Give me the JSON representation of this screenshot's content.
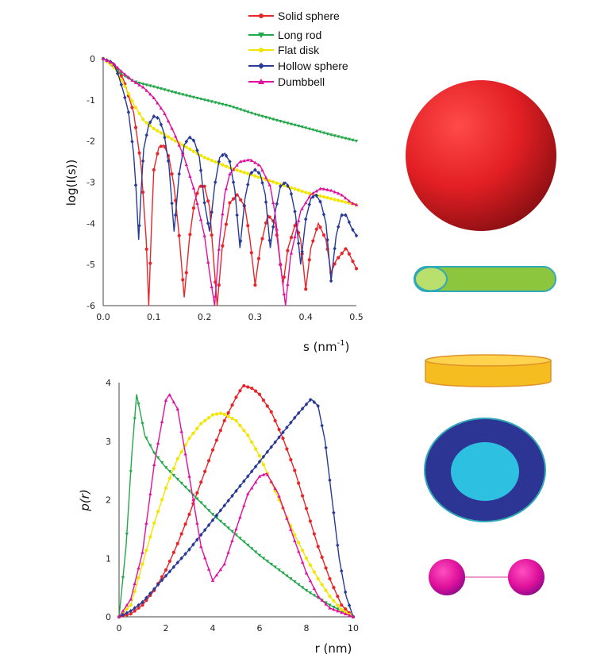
{
  "legend": {
    "items": [
      {
        "label": "Solid sphere",
        "color": "#e8262a",
        "marker": "circle"
      },
      {
        "label": "Long rod",
        "color": "#22a84a",
        "marker": "triangle-down"
      },
      {
        "label": "Flat disk",
        "color": "#f2e600",
        "marker": "circle"
      },
      {
        "label": "Hollow sphere",
        "color": "#283a96",
        "marker": "diamond"
      },
      {
        "label": "Dumbbell",
        "color": "#e0119c",
        "marker": "triangle-up"
      }
    ]
  },
  "chart_data": [
    {
      "type": "line",
      "ylabel": "log(I(s))",
      "xlabel": "s (nm",
      "xlabel_sup": "-1",
      "xlabel_close": ")",
      "xlim": [
        0,
        0.5
      ],
      "ylim": [
        -6,
        0
      ],
      "xticks": [
        "0.0",
        "0.1",
        "0.2",
        "0.3",
        "0.4",
        "0.5"
      ],
      "yticks": [
        "0",
        "-1",
        "-2",
        "-3",
        "-4",
        "-5",
        "-6"
      ],
      "grid": false,
      "legend_position": "top-center",
      "series": [
        {
          "name": "Solid sphere",
          "points": [
            [
              0,
              0
            ],
            [
              0.02,
              -0.12
            ],
            [
              0.04,
              -0.5
            ],
            [
              0.06,
              -1.3
            ],
            [
              0.075,
              -2.6
            ],
            [
              0.085,
              -4.4
            ],
            [
              0.09,
              -6
            ],
            [
              0.095,
              -4.2
            ],
            [
              0.1,
              -2.7
            ],
            [
              0.11,
              -2.15
            ],
            [
              0.12,
              -2.1
            ],
            [
              0.13,
              -2.4
            ],
            [
              0.14,
              -3.1
            ],
            [
              0.15,
              -4.3
            ],
            [
              0.16,
              -5.8
            ],
            [
              0.17,
              -4.4
            ],
            [
              0.18,
              -3.5
            ],
            [
              0.19,
              -3.1
            ],
            [
              0.2,
              -3.1
            ],
            [
              0.21,
              -3.6
            ],
            [
              0.22,
              -5.2
            ],
            [
              0.225,
              -6
            ],
            [
              0.235,
              -4.6
            ],
            [
              0.25,
              -3.5
            ],
            [
              0.265,
              -3.3
            ],
            [
              0.28,
              -3.6
            ],
            [
              0.29,
              -4.4
            ],
            [
              0.3,
              -5.5
            ],
            [
              0.31,
              -4.6
            ],
            [
              0.325,
              -3.8
            ],
            [
              0.34,
              -4
            ],
            [
              0.35,
              -5
            ],
            [
              0.355,
              -5.5
            ],
            [
              0.365,
              -4.6
            ],
            [
              0.38,
              -4
            ],
            [
              0.39,
              -4.4
            ],
            [
              0.4,
              -5.6
            ],
            [
              0.41,
              -4.6
            ],
            [
              0.425,
              -4
            ],
            [
              0.44,
              -4.4
            ],
            [
              0.45,
              -5.2
            ],
            [
              0.46,
              -4.9
            ],
            [
              0.48,
              -4.6
            ],
            [
              0.5,
              -5.1
            ]
          ]
        },
        {
          "name": "Long rod",
          "points": [
            [
              0,
              0
            ],
            [
              0.02,
              -0.2
            ],
            [
              0.04,
              -0.4
            ],
            [
              0.06,
              -0.55
            ],
            [
              0.08,
              -0.62
            ],
            [
              0.1,
              -0.68
            ],
            [
              0.15,
              -0.85
            ],
            [
              0.2,
              -1.0
            ],
            [
              0.25,
              -1.15
            ],
            [
              0.3,
              -1.35
            ],
            [
              0.35,
              -1.52
            ],
            [
              0.4,
              -1.68
            ],
            [
              0.45,
              -1.85
            ],
            [
              0.5,
              -2.0
            ]
          ]
        },
        {
          "name": "Flat disk",
          "points": [
            [
              0,
              0
            ],
            [
              0.02,
              -0.18
            ],
            [
              0.04,
              -0.6
            ],
            [
              0.06,
              -1.1
            ],
            [
              0.08,
              -1.5
            ],
            [
              0.1,
              -1.7
            ],
            [
              0.15,
              -2.05
            ],
            [
              0.2,
              -2.4
            ],
            [
              0.25,
              -2.65
            ],
            [
              0.3,
              -2.85
            ],
            [
              0.35,
              -3.05
            ],
            [
              0.4,
              -3.25
            ],
            [
              0.45,
              -3.4
            ],
            [
              0.5,
              -3.55
            ]
          ]
        },
        {
          "name": "Hollow sphere",
          "points": [
            [
              0,
              0
            ],
            [
              0.02,
              -0.1
            ],
            [
              0.03,
              -0.4
            ],
            [
              0.04,
              -0.8
            ],
            [
              0.05,
              -1.3
            ],
            [
              0.06,
              -2.3
            ],
            [
              0.065,
              -3.2
            ],
            [
              0.07,
              -4.4
            ],
            [
              0.075,
              -3.2
            ],
            [
              0.08,
              -2.2
            ],
            [
              0.09,
              -1.6
            ],
            [
              0.1,
              -1.4
            ],
            [
              0.11,
              -1.45
            ],
            [
              0.12,
              -1.8
            ],
            [
              0.13,
              -2.6
            ],
            [
              0.14,
              -4.2
            ],
            [
              0.15,
              -2.8
            ],
            [
              0.16,
              -2.1
            ],
            [
              0.17,
              -1.9
            ],
            [
              0.18,
              -2.0
            ],
            [
              0.19,
              -2.4
            ],
            [
              0.2,
              -3.5
            ],
            [
              0.21,
              -4.2
            ],
            [
              0.22,
              -3.1
            ],
            [
              0.23,
              -2.4
            ],
            [
              0.24,
              -2.3
            ],
            [
              0.25,
              -2.5
            ],
            [
              0.26,
              -3.2
            ],
            [
              0.27,
              -4.6
            ],
            [
              0.28,
              -3.4
            ],
            [
              0.29,
              -2.8
            ],
            [
              0.3,
              -2.7
            ],
            [
              0.31,
              -2.8
            ],
            [
              0.32,
              -3.3
            ],
            [
              0.33,
              -4.6
            ],
            [
              0.34,
              -3.7
            ],
            [
              0.35,
              -3.1
            ],
            [
              0.36,
              -3.0
            ],
            [
              0.37,
              -3.2
            ],
            [
              0.38,
              -3.8
            ],
            [
              0.39,
              -5.0
            ],
            [
              0.4,
              -3.9
            ],
            [
              0.41,
              -3.4
            ],
            [
              0.42,
              -3.3
            ],
            [
              0.43,
              -3.5
            ],
            [
              0.44,
              -4.0
            ],
            [
              0.45,
              -5.4
            ],
            [
              0.46,
              -4.3
            ],
            [
              0.47,
              -3.8
            ],
            [
              0.48,
              -3.8
            ],
            [
              0.49,
              -4.1
            ],
            [
              0.5,
              -4.3
            ]
          ]
        },
        {
          "name": "Dumbbell",
          "points": [
            [
              0,
              0
            ],
            [
              0.02,
              -0.12
            ],
            [
              0.04,
              -0.35
            ],
            [
              0.06,
              -0.55
            ],
            [
              0.08,
              -0.7
            ],
            [
              0.1,
              -0.95
            ],
            [
              0.12,
              -1.3
            ],
            [
              0.14,
              -1.8
            ],
            [
              0.16,
              -2.4
            ],
            [
              0.18,
              -3.2
            ],
            [
              0.2,
              -4.3
            ],
            [
              0.21,
              -5.2
            ],
            [
              0.22,
              -6
            ],
            [
              0.23,
              -4.4
            ],
            [
              0.24,
              -3.3
            ],
            [
              0.25,
              -2.8
            ],
            [
              0.27,
              -2.5
            ],
            [
              0.29,
              -2.45
            ],
            [
              0.31,
              -2.6
            ],
            [
              0.33,
              -3.1
            ],
            [
              0.34,
              -3.8
            ],
            [
              0.35,
              -5
            ],
            [
              0.36,
              -6
            ],
            [
              0.37,
              -4.8
            ],
            [
              0.39,
              -3.7
            ],
            [
              0.41,
              -3.3
            ],
            [
              0.43,
              -3.15
            ],
            [
              0.45,
              -3.2
            ],
            [
              0.47,
              -3.3
            ],
            [
              0.49,
              -3.5
            ],
            [
              0.5,
              -3.55
            ]
          ]
        }
      ]
    },
    {
      "type": "line",
      "ylabel": "p(r)",
      "xlabel": "r (nm)",
      "xlim": [
        0,
        10
      ],
      "ylim": [
        0,
        4
      ],
      "xticks": [
        "0",
        "2",
        "4",
        "6",
        "8",
        "10"
      ],
      "yticks": [
        "4",
        "3",
        "2",
        "1",
        "0"
      ],
      "grid": false,
      "series": [
        {
          "name": "Solid sphere",
          "points": [
            [
              0,
              0
            ],
            [
              0.5,
              0.05
            ],
            [
              1,
              0.2
            ],
            [
              1.5,
              0.45
            ],
            [
              2,
              0.8
            ],
            [
              2.5,
              1.25
            ],
            [
              3,
              1.75
            ],
            [
              3.5,
              2.3
            ],
            [
              4,
              2.85
            ],
            [
              4.5,
              3.35
            ],
            [
              5,
              3.75
            ],
            [
              5.3,
              3.95
            ],
            [
              5.7,
              3.9
            ],
            [
              6,
              3.8
            ],
            [
              6.5,
              3.5
            ],
            [
              7,
              3.05
            ],
            [
              7.5,
              2.5
            ],
            [
              8,
              1.85
            ],
            [
              8.5,
              1.2
            ],
            [
              9,
              0.65
            ],
            [
              9.5,
              0.2
            ],
            [
              10,
              0
            ]
          ]
        },
        {
          "name": "Long rod",
          "points": [
            [
              0,
              0
            ],
            [
              0.3,
              1.2
            ],
            [
              0.55,
              2.8
            ],
            [
              0.75,
              3.8
            ],
            [
              0.9,
              3.5
            ],
            [
              1.1,
              3.1
            ],
            [
              1.5,
              2.8
            ],
            [
              2,
              2.55
            ],
            [
              3,
              2.15
            ],
            [
              4,
              1.75
            ],
            [
              5,
              1.4
            ],
            [
              6,
              1.05
            ],
            [
              7,
              0.75
            ],
            [
              8,
              0.45
            ],
            [
              9,
              0.2
            ],
            [
              10,
              0
            ]
          ]
        },
        {
          "name": "Flat disk",
          "points": [
            [
              0,
              0
            ],
            [
              0.5,
              0.2
            ],
            [
              1,
              0.9
            ],
            [
              1.5,
              1.6
            ],
            [
              2,
              2.2
            ],
            [
              2.5,
              2.7
            ],
            [
              3,
              3.05
            ],
            [
              3.5,
              3.3
            ],
            [
              4,
              3.45
            ],
            [
              4.4,
              3.48
            ],
            [
              5,
              3.35
            ],
            [
              5.5,
              3.1
            ],
            [
              6,
              2.75
            ],
            [
              6.5,
              2.3
            ],
            [
              7,
              1.85
            ],
            [
              7.5,
              1.4
            ],
            [
              8,
              1.0
            ],
            [
              8.5,
              0.65
            ],
            [
              9,
              0.35
            ],
            [
              9.5,
              0.12
            ],
            [
              10,
              0
            ]
          ]
        },
        {
          "name": "Hollow sphere",
          "points": [
            [
              0,
              0
            ],
            [
              0.5,
              0.1
            ],
            [
              1,
              0.25
            ],
            [
              2,
              0.7
            ],
            [
              3,
              1.15
            ],
            [
              4,
              1.65
            ],
            [
              5,
              2.15
            ],
            [
              6,
              2.65
            ],
            [
              7,
              3.15
            ],
            [
              7.6,
              3.45
            ],
            [
              8.2,
              3.72
            ],
            [
              8.5,
              3.6
            ],
            [
              8.8,
              3.0
            ],
            [
              9.1,
              2.0
            ],
            [
              9.4,
              1.0
            ],
            [
              9.7,
              0.35
            ],
            [
              10,
              0
            ]
          ]
        },
        {
          "name": "Dumbbell",
          "points": [
            [
              0,
              0
            ],
            [
              0.5,
              0.3
            ],
            [
              1,
              1.1
            ],
            [
              1.5,
              2.6
            ],
            [
              2,
              3.7
            ],
            [
              2.15,
              3.8
            ],
            [
              2.5,
              3.55
            ],
            [
              3,
              2.4
            ],
            [
              3.5,
              1.2
            ],
            [
              4,
              0.62
            ],
            [
              4.5,
              0.9
            ],
            [
              5,
              1.5
            ],
            [
              5.5,
              2.1
            ],
            [
              6,
              2.4
            ],
            [
              6.3,
              2.45
            ],
            [
              6.8,
              2.1
            ],
            [
              7.5,
              1.3
            ],
            [
              8,
              0.75
            ],
            [
              8.5,
              0.35
            ],
            [
              9,
              0.15
            ],
            [
              10,
              0
            ]
          ]
        }
      ]
    }
  ],
  "shapes": [
    {
      "name": "Solid sphere",
      "fill": "#e8262a"
    },
    {
      "name": "Long rod",
      "fill": "#8cc63f",
      "end_fill": "#b9e06c",
      "stroke": "#2fa8b8"
    },
    {
      "name": "Flat disk",
      "fill": "#f5bd1f",
      "top_fill": "#ffd34d",
      "stroke": "#e0912a"
    },
    {
      "name": "Hollow sphere",
      "fill": "#2d3594",
      "inner_fill": "#2ec0e0",
      "stroke": "#2fa8b8"
    },
    {
      "name": "Dumbbell",
      "fill": "#e0119c",
      "rod": "#ee99cc"
    }
  ]
}
